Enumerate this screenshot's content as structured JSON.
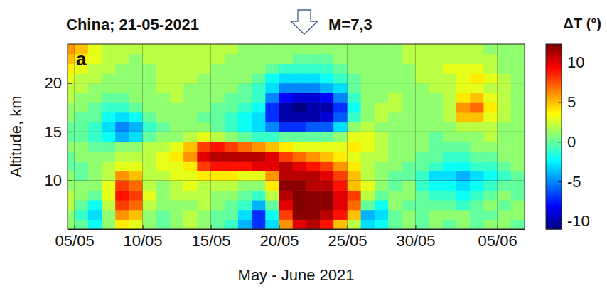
{
  "chart_data": {
    "type": "heatmap",
    "title": "China; 21-05-2021",
    "annotation": "M=7,3",
    "panel": "a",
    "x_label": "May - June 2021",
    "y_label": "Altitude, km",
    "x": [
      "2021-05-04",
      "2021-05-05",
      "2021-05-06",
      "2021-05-07",
      "2021-05-08",
      "2021-05-09",
      "2021-05-10",
      "2021-05-11",
      "2021-05-12",
      "2021-05-13",
      "2021-05-14",
      "2021-05-15",
      "2021-05-16",
      "2021-05-17",
      "2021-05-18",
      "2021-05-19",
      "2021-05-20",
      "2021-05-21",
      "2021-05-22",
      "2021-05-23",
      "2021-05-24",
      "2021-05-25",
      "2021-05-26",
      "2021-05-27",
      "2021-05-28",
      "2021-05-29",
      "2021-05-30",
      "2021-05-31",
      "2021-06-01",
      "2021-06-02",
      "2021-06-03",
      "2021-06-04",
      "2021-06-05",
      "2021-06-06"
    ],
    "y": [
      5.5,
      6.5,
      7.5,
      8.5,
      9.5,
      10.5,
      11.5,
      12.5,
      13.5,
      14.5,
      15.5,
      16.5,
      17.5,
      18.5,
      19.5,
      20.5,
      21.5,
      22.5,
      23.5
    ],
    "cells": [
      [
        1,
        0,
        -2,
        1,
        4,
        3,
        1,
        0,
        1,
        2,
        1,
        0,
        -1,
        -4,
        -7,
        -3,
        6,
        10,
        11,
        9,
        5,
        2,
        -3,
        -2,
        0,
        1,
        0,
        1,
        0,
        1,
        0,
        1,
        1,
        0
      ],
      [
        1,
        -1,
        -3,
        1,
        6,
        5,
        1,
        0,
        1,
        2,
        1,
        0,
        0,
        -3,
        -7,
        -2,
        8,
        12,
        12,
        11,
        9,
        5,
        -4,
        -3,
        0,
        1,
        0,
        1,
        1,
        1,
        0,
        0,
        1,
        1
      ],
      [
        2,
        0,
        -2,
        2,
        8,
        7,
        2,
        1,
        1,
        1,
        2,
        1,
        0,
        -1,
        -4,
        0,
        10,
        13,
        12,
        12,
        10,
        7,
        0,
        -2,
        1,
        0,
        0,
        0,
        0,
        -1,
        0,
        1,
        0,
        1
      ],
      [
        2,
        1,
        0,
        3,
        9,
        8,
        3,
        1,
        2,
        2,
        2,
        1,
        1,
        0,
        -1,
        2,
        11,
        13,
        12,
        12,
        10,
        8,
        2,
        0,
        1,
        1,
        0,
        -1,
        -1,
        -2,
        -1,
        0,
        1,
        0
      ],
      [
        1,
        1,
        1,
        3,
        8,
        7,
        2,
        1,
        2,
        3,
        2,
        2,
        2,
        1,
        1,
        4,
        12,
        12,
        11,
        11,
        9,
        5,
        3,
        1,
        0,
        1,
        -1,
        -2,
        -2,
        -3,
        -2,
        -1,
        0,
        0
      ],
      [
        1,
        0,
        1,
        2,
        6,
        5,
        2,
        2,
        3,
        3,
        4,
        4,
        4,
        3,
        3,
        6,
        11,
        11,
        11,
        10,
        8,
        5,
        2,
        1,
        0,
        0,
        -1,
        -3,
        -3,
        -4,
        -3,
        -2,
        -1,
        0
      ],
      [
        0,
        0,
        1,
        2,
        3,
        3,
        2,
        3,
        3,
        4,
        8,
        9,
        9,
        9,
        10,
        10,
        11,
        10,
        9,
        8,
        6,
        4,
        2,
        1,
        1,
        0,
        0,
        -1,
        -2,
        -2,
        -1,
        -1,
        0,
        1
      ],
      [
        0,
        1,
        1,
        1,
        2,
        2,
        2,
        3,
        4,
        6,
        10,
        11,
        11,
        11,
        11,
        10,
        8,
        7,
        6,
        5,
        4,
        3,
        2,
        2,
        1,
        1,
        0,
        0,
        -1,
        -1,
        0,
        0,
        1,
        1
      ],
      [
        1,
        1,
        0,
        0,
        1,
        1,
        2,
        2,
        3,
        5,
        8,
        9,
        8,
        7,
        6,
        5,
        4,
        3,
        3,
        3,
        3,
        4,
        3,
        2,
        1,
        1,
        1,
        0,
        0,
        0,
        1,
        1,
        1,
        1
      ],
      [
        0,
        0,
        -1,
        -2,
        -4,
        -3,
        0,
        1,
        1,
        2,
        3,
        2,
        1,
        0,
        -1,
        -1,
        0,
        0,
        0,
        0,
        1,
        3,
        3,
        2,
        1,
        1,
        1,
        0,
        1,
        1,
        1,
        2,
        1,
        1
      ],
      [
        0,
        0,
        -1,
        -3,
        -5,
        -4,
        -1,
        0,
        1,
        1,
        1,
        0,
        -1,
        -2,
        -3,
        -5,
        -7,
        -7,
        -6,
        -6,
        -3,
        1,
        2,
        1,
        1,
        1,
        1,
        1,
        1,
        2,
        2,
        2,
        1,
        1
      ],
      [
        1,
        0,
        0,
        -2,
        -3,
        -2,
        0,
        1,
        1,
        1,
        0,
        0,
        -1,
        -2,
        -3,
        -7,
        -10,
        -10,
        -10,
        -9,
        -6,
        -1,
        1,
        2,
        1,
        1,
        1,
        1,
        2,
        5,
        5,
        3,
        2,
        1
      ],
      [
        1,
        1,
        0,
        -1,
        -1,
        0,
        1,
        1,
        1,
        1,
        1,
        0,
        0,
        -1,
        -2,
        -7,
        -10,
        -11,
        -10,
        -10,
        -7,
        -2,
        1,
        2,
        2,
        1,
        1,
        1,
        2,
        6,
        7,
        4,
        2,
        1
      ],
      [
        2,
        1,
        1,
        0,
        0,
        1,
        1,
        1,
        2,
        1,
        1,
        1,
        0,
        0,
        -1,
        -5,
        -8,
        -9,
        -9,
        -8,
        -5,
        -1,
        1,
        1,
        2,
        1,
        1,
        1,
        2,
        4,
        5,
        3,
        2,
        1
      ],
      [
        2,
        2,
        1,
        1,
        1,
        1,
        1,
        2,
        2,
        1,
        1,
        1,
        1,
        0,
        -1,
        -3,
        -5,
        -5,
        -5,
        -4,
        -3,
        0,
        1,
        1,
        1,
        1,
        1,
        2,
        2,
        3,
        3,
        2,
        2,
        1
      ],
      [
        3,
        2,
        2,
        1,
        1,
        1,
        1,
        2,
        2,
        2,
        1,
        1,
        1,
        1,
        0,
        -2,
        -3,
        -3,
        -3,
        -2,
        -1,
        0,
        1,
        1,
        1,
        1,
        2,
        2,
        2,
        3,
        4,
        3,
        2,
        1
      ],
      [
        4,
        3,
        2,
        2,
        1,
        1,
        1,
        2,
        2,
        2,
        2,
        1,
        1,
        1,
        1,
        0,
        -1,
        -1,
        -1,
        -1,
        0,
        1,
        1,
        1,
        1,
        1,
        2,
        2,
        3,
        3,
        3,
        2,
        1,
        1
      ],
      [
        5,
        4,
        3,
        2,
        2,
        1,
        2,
        2,
        2,
        2,
        2,
        2,
        1,
        1,
        1,
        1,
        1,
        0,
        0,
        0,
        1,
        1,
        1,
        1,
        1,
        2,
        2,
        2,
        2,
        2,
        2,
        2,
        1,
        1
      ],
      [
        6,
        5,
        3,
        2,
        2,
        2,
        2,
        2,
        2,
        2,
        2,
        2,
        2,
        1,
        1,
        1,
        1,
        1,
        1,
        1,
        1,
        1,
        1,
        1,
        1,
        2,
        2,
        2,
        2,
        2,
        2,
        1,
        1,
        1
      ]
    ],
    "xlim": [
      "2021-05-04T12:00",
      "2021-06-07T00:00"
    ],
    "ylim": [
      5,
      24
    ],
    "xticks": [
      {
        "value": "2021-05-05",
        "label": "05/05"
      },
      {
        "value": "2021-05-10",
        "label": "10/05"
      },
      {
        "value": "2021-05-15",
        "label": "15/05"
      },
      {
        "value": "2021-05-20",
        "label": "20/05"
      },
      {
        "value": "2021-05-25",
        "label": "25/05"
      },
      {
        "value": "2021-05-30",
        "label": "30/05"
      },
      {
        "value": "2021-06-05",
        "label": "05/06"
      }
    ],
    "yticks": [
      10,
      15,
      20
    ],
    "grid": true,
    "colorbar": {
      "title": "ΔT (°)",
      "range": [
        -11,
        12.3
      ],
      "ticks": [
        -10,
        -5,
        0,
        5,
        10
      ]
    }
  }
}
